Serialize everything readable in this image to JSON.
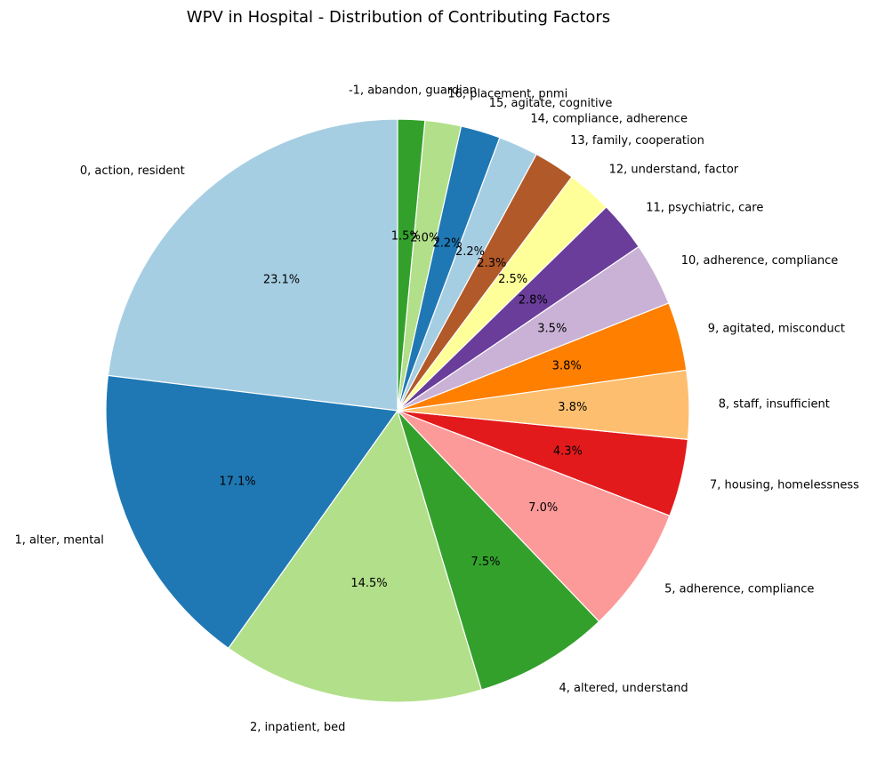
{
  "chart_data": {
    "type": "pie",
    "title": "WPV in Hospital - Distribution of Contributing Factors",
    "start_angle_deg": 90,
    "direction": "counterclockwise",
    "slices": [
      {
        "label": "0, action, resident",
        "value": 23.1,
        "pct_text": "23.1%",
        "color": "#a6cee3"
      },
      {
        "label": "1, alter, mental",
        "value": 17.1,
        "pct_text": "17.1%",
        "color": "#1f78b4"
      },
      {
        "label": "2, inpatient, bed",
        "value": 14.5,
        "pct_text": "14.5%",
        "color": "#b2df8a"
      },
      {
        "label": "4, altered, understand",
        "value": 7.5,
        "pct_text": "7.5%",
        "color": "#33a02c"
      },
      {
        "label": "5, adherence, compliance",
        "value": 7.0,
        "pct_text": "7.0%",
        "color": "#fb9a99"
      },
      {
        "label": "7, housing, homelessness",
        "value": 4.3,
        "pct_text": "4.3%",
        "color": "#e31a1c"
      },
      {
        "label": "8, staff, insufficient",
        "value": 3.8,
        "pct_text": "3.8%",
        "color": "#fdbf6f"
      },
      {
        "label": "9, agitated, misconduct",
        "value": 3.8,
        "pct_text": "3.8%",
        "color": "#ff7f00"
      },
      {
        "label": "10, adherence, compliance",
        "value": 3.5,
        "pct_text": "3.5%",
        "color": "#cab2d6"
      },
      {
        "label": "11, psychiatric, care",
        "value": 2.8,
        "pct_text": "2.8%",
        "color": "#6a3d9a"
      },
      {
        "label": "12, understand, factor",
        "value": 2.5,
        "pct_text": "2.5%",
        "color": "#ffff99"
      },
      {
        "label": "13, family, cooperation",
        "value": 2.3,
        "pct_text": "2.3%",
        "color": "#b15928"
      },
      {
        "label": "14, compliance, adherence",
        "value": 2.2,
        "pct_text": "2.2%",
        "color": "#a6cee3"
      },
      {
        "label": "15, agitate, cognitive",
        "value": 2.2,
        "pct_text": "2.2%",
        "color": "#1f78b4"
      },
      {
        "label": "16, placement, pnmi",
        "value": 2.0,
        "pct_text": "2.0%",
        "color": "#b2df8a"
      },
      {
        "label": "-1, abandon, guardian",
        "value": 1.5,
        "pct_text": "1.5%",
        "color": "#33a02c"
      }
    ]
  }
}
